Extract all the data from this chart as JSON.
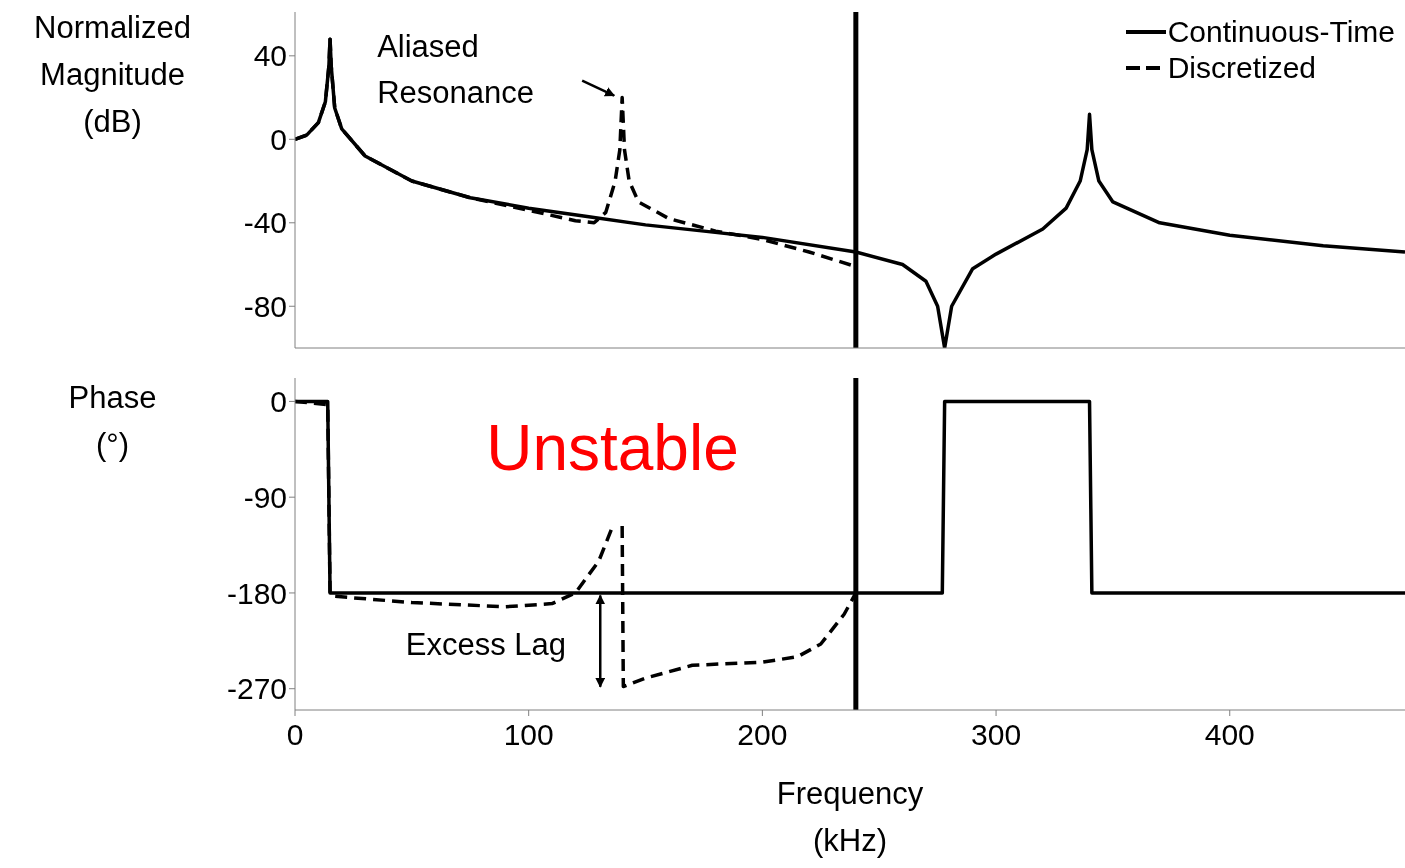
{
  "chart_data": [
    {
      "type": "line",
      "ylabel": "Normalized Magnitude (dB)",
      "xlim": [
        0,
        475
      ],
      "xticks": [
        0,
        100,
        200,
        300,
        400
      ],
      "ylim": [
        -100,
        61
      ],
      "yticks": [
        -80,
        -40,
        0,
        40
      ],
      "tick_labels": "y",
      "legend": "top right",
      "marker": "none",
      "ref_lines": [
        {
          "axis": "x",
          "value": 240,
          "color": "#000000"
        }
      ],
      "annotations": [
        {
          "text": "Aliased Resonance",
          "x": 140,
          "y": 20
        }
      ],
      "series": [
        {
          "name": "Continuous-Time",
          "color": "#000000",
          "line_style": "solid",
          "x": [
            0,
            5,
            10,
            13,
            14.5,
            15,
            15.5,
            17,
            20,
            30,
            50,
            75,
            100,
            125,
            150,
            175,
            200,
            240,
            260,
            270,
            275,
            278,
            281,
            290,
            300,
            320,
            330,
            336,
            339,
            340,
            341,
            344,
            350,
            370,
            400,
            440,
            475
          ],
          "values": [
            0,
            2,
            8,
            18,
            35,
            48,
            35,
            15,
            5,
            -8,
            -20,
            -28,
            -33,
            -37,
            -41,
            -44,
            -47,
            -54,
            -60,
            -68,
            -80,
            -100,
            -80,
            -62,
            -55,
            -43,
            -33,
            -20,
            -5,
            12,
            -5,
            -20,
            -30,
            -40,
            -46,
            -51,
            -54
          ]
        },
        {
          "name": "Discretized",
          "color": "#000000",
          "line_style": "dashed",
          "x": [
            0,
            5,
            10,
            13,
            14.5,
            15,
            15.5,
            17,
            20,
            30,
            50,
            75,
            100,
            120,
            128,
            133,
            137,
            139,
            140,
            141,
            143,
            147,
            160,
            180,
            200,
            220,
            240
          ],
          "values": [
            0,
            2,
            8,
            18,
            35,
            48,
            35,
            15,
            5,
            -8,
            -20,
            -28,
            -34,
            -39,
            -40,
            -35,
            -20,
            -5,
            20,
            -5,
            -20,
            -30,
            -38,
            -44,
            -48,
            -54,
            -61
          ]
        }
      ]
    },
    {
      "type": "line",
      "ylabel": "Phase (°)",
      "xlabel": "Frequency (kHz)",
      "xlim": [
        0,
        475
      ],
      "xticks": [
        0,
        100,
        200,
        300,
        400
      ],
      "ylim": [
        -290,
        22
      ],
      "yticks": [
        -270,
        -180,
        -90,
        0
      ],
      "marker": "none",
      "ref_lines": [
        {
          "axis": "x",
          "value": 240,
          "color": "#000000"
        }
      ],
      "annotations": [
        "Unstable",
        "Excess Lag"
      ],
      "series": [
        {
          "color": "#000000",
          "line_style": "solid",
          "x": [
            0,
            14,
            15,
            277,
            278,
            340,
            341,
            475
          ],
          "values": [
            0,
            0,
            -180,
            -180,
            0,
            0,
            -180,
            -180
          ]
        },
        {
          "color": "#000000",
          "line_style": "dashed",
          "x": [
            0,
            14,
            15,
            16,
            50,
            90,
            110,
            120,
            130,
            136,
            138,
            140,
            140.5,
            150,
            170,
            200,
            215,
            225,
            235,
            240
          ],
          "values": [
            0,
            -3,
            -180,
            -183,
            -189,
            -193,
            -190,
            -180,
            -150,
            -117,
            null,
            -117,
            -268,
            -260,
            -248,
            -245,
            -240,
            -228,
            -200,
            -180
          ]
        }
      ]
    }
  ]
}
